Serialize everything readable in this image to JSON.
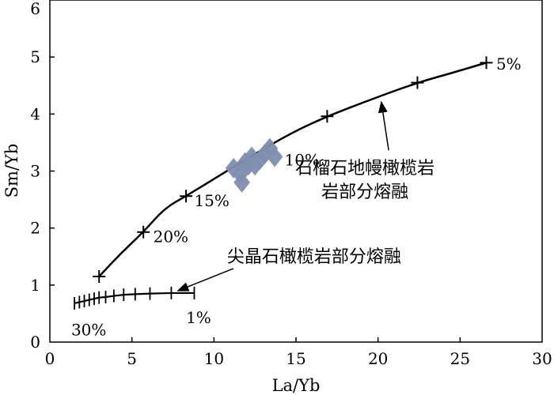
{
  "chart_data": {
    "type": "line",
    "xlabel": "La/Yb",
    "ylabel": "Sm/Yb",
    "xlim": [
      0,
      30
    ],
    "ylim": [
      0,
      6
    ],
    "x_ticks": [
      "0",
      "5",
      "10",
      "15",
      "20",
      "25",
      "30"
    ],
    "y_ticks": [
      "0",
      "1",
      "2",
      "3",
      "4",
      "5",
      "6"
    ],
    "grid": false,
    "series": [
      {
        "name": "石榴石地幔橄榄岩部分熔融",
        "line_color": "#000000",
        "x": [
          3.0,
          5.7,
          8.3,
          16.9,
          22.4,
          26.6
        ],
        "y": [
          1.15,
          1.93,
          2.56,
          3.96,
          4.55,
          4.9
        ],
        "curve_x": [
          3.0,
          4.3,
          5.7,
          7.0,
          8.3,
          10.5,
          12.5,
          14.8,
          16.9,
          19.8,
          22.4,
          24.5,
          26.6
        ],
        "curve_y": [
          1.15,
          1.55,
          1.93,
          2.35,
          2.56,
          2.95,
          3.3,
          3.68,
          3.96,
          4.28,
          4.55,
          4.72,
          4.9
        ],
        "point_labels": [
          {
            "text": "5%",
            "x": 27.2,
            "y": 4.78
          },
          {
            "text": "15%",
            "x": 8.8,
            "y": 2.38
          },
          {
            "text": "20%",
            "x": 6.3,
            "y": 1.75
          },
          {
            "text": "10%",
            "x": 14.3,
            "y": 3.1
          }
        ]
      },
      {
        "name": "尖晶石橄榄岩部分熔融",
        "line_color": "#000000",
        "x": [
          1.5,
          1.8,
          2.1,
          2.4,
          2.7,
          3.0,
          3.4,
          3.9,
          4.5,
          5.2,
          6.1,
          7.4,
          8.8
        ],
        "y": [
          0.68,
          0.7,
          0.72,
          0.74,
          0.76,
          0.78,
          0.79,
          0.81,
          0.83,
          0.84,
          0.85,
          0.86,
          0.86
        ],
        "point_labels": [
          {
            "text": "30%",
            "x": 1.3,
            "y": 0.12
          },
          {
            "text": "1%",
            "x": 8.3,
            "y": 0.33
          }
        ]
      },
      {
        "name": "",
        "type": "scatter",
        "marker": "diamond",
        "color": "#7f8eaf",
        "x": [
          11.2,
          11.6,
          11.9,
          12.3,
          12.5,
          12.8,
          13.1,
          13.4,
          13.7,
          11.7,
          12.1
        ],
        "y": [
          3.05,
          2.95,
          3.15,
          3.25,
          3.1,
          3.2,
          3.3,
          3.4,
          3.25,
          2.8,
          3.1
        ]
      }
    ],
    "annotations": [
      {
        "text_lines": [
          "石榴石地幔橄榄岩",
          "岩部分熔融"
        ],
        "x": 19.2,
        "y": 2.95,
        "arrow_to": [
          20.2,
          4.28
        ]
      },
      {
        "text": "尖晶石橄榄岩部分熔融",
        "x": 10.8,
        "y": 1.4,
        "arrow_to": [
          7.8,
          0.9
        ]
      }
    ]
  }
}
